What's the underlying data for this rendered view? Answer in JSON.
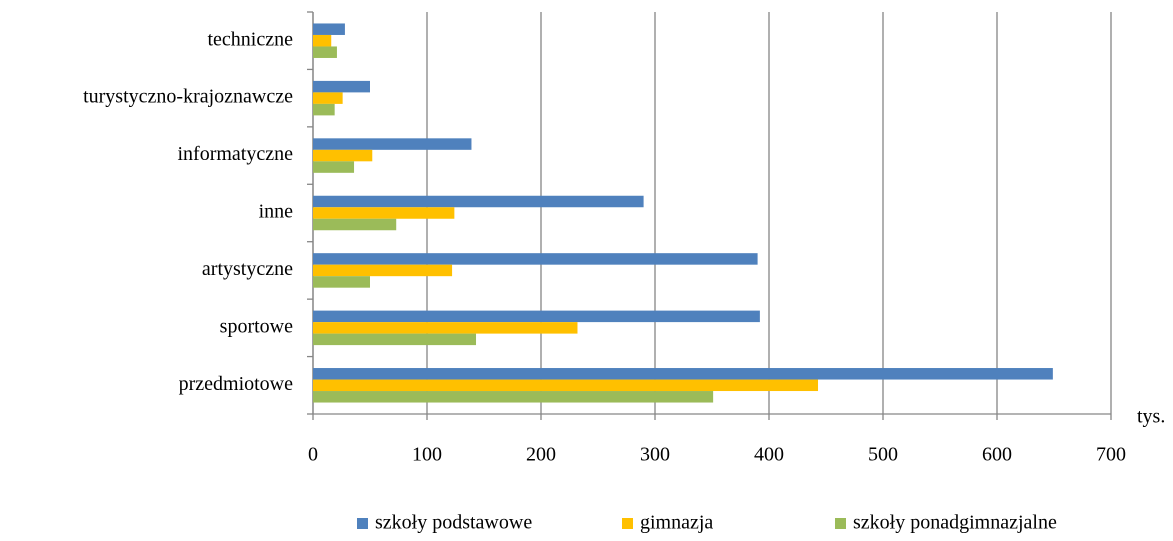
{
  "chart_data": {
    "type": "hbar",
    "categories": [
      "techniczne",
      "turystyczno-krajoznawcze",
      "informatyczne",
      "inne",
      "artystyczne",
      "sportowe",
      "przedmiotowe"
    ],
    "series": [
      {
        "name": "szkoły podstawowe",
        "color": "#4f81bd",
        "values": [
          28,
          50,
          139,
          290,
          390,
          392,
          649
        ]
      },
      {
        "name": "gimnazja",
        "color": "#ffc000",
        "values": [
          16,
          26,
          52,
          124,
          122,
          232,
          443
        ]
      },
      {
        "name": "szkoły ponadgimnazjalne",
        "color": "#9bbb59",
        "values": [
          21,
          19,
          36,
          73,
          50,
          143,
          351
        ]
      }
    ],
    "xlabel": "tys.",
    "xlim": [
      0,
      700
    ],
    "xticks": [
      0,
      100,
      200,
      300,
      400,
      500,
      600,
      700
    ],
    "grid": true,
    "legend": "bottom"
  }
}
